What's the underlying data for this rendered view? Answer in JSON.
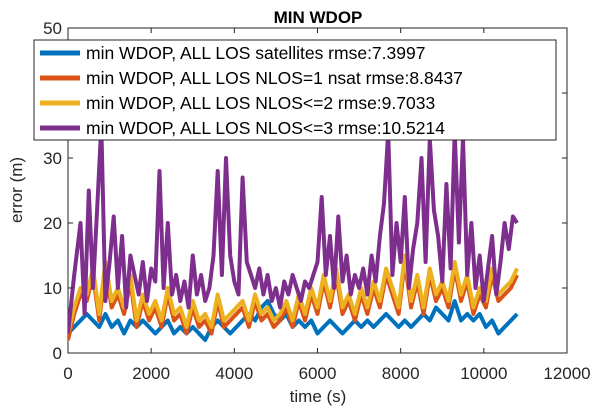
{
  "chart_data": {
    "type": "line",
    "title": "MIN WDOP",
    "xlabel": "time (s)",
    "ylabel": "error (m)",
    "xlim": [
      0,
      12000
    ],
    "ylim": [
      0,
      50
    ],
    "xticks": [
      0,
      2000,
      4000,
      6000,
      8000,
      10000,
      12000
    ],
    "yticks": [
      0,
      10,
      20,
      30,
      40,
      50
    ],
    "grid": false,
    "legend_position": "top-left",
    "series": [
      {
        "name": "min WDOP, ALL LOS satellites rmse:7.3997",
        "color": "#0072BD",
        "points": [
          [
            0,
            3
          ],
          [
            150,
            4
          ],
          [
            300,
            5
          ],
          [
            450,
            6
          ],
          [
            600,
            5
          ],
          [
            750,
            4
          ],
          [
            900,
            6
          ],
          [
            1050,
            4
          ],
          [
            1200,
            5
          ],
          [
            1350,
            3
          ],
          [
            1500,
            5
          ],
          [
            1650,
            4
          ],
          [
            1800,
            5
          ],
          [
            1950,
            4
          ],
          [
            2100,
            3
          ],
          [
            2250,
            4
          ],
          [
            2400,
            5
          ],
          [
            2550,
            3
          ],
          [
            2700,
            4
          ],
          [
            2850,
            3
          ],
          [
            3000,
            4
          ],
          [
            3150,
            3
          ],
          [
            3300,
            2
          ],
          [
            3450,
            4
          ],
          [
            3600,
            5
          ],
          [
            3750,
            4
          ],
          [
            3900,
            3
          ],
          [
            4050,
            4
          ],
          [
            4200,
            5
          ],
          [
            4350,
            6
          ],
          [
            4500,
            5
          ],
          [
            4650,
            7
          ],
          [
            4800,
            8
          ],
          [
            4950,
            6
          ],
          [
            5100,
            5
          ],
          [
            5250,
            6
          ],
          [
            5400,
            4
          ],
          [
            5550,
            5
          ],
          [
            5700,
            4
          ],
          [
            5850,
            5
          ],
          [
            6000,
            3
          ],
          [
            6150,
            4
          ],
          [
            6300,
            5
          ],
          [
            6450,
            4
          ],
          [
            6600,
            3
          ],
          [
            6750,
            4
          ],
          [
            6900,
            5
          ],
          [
            7050,
            4
          ],
          [
            7200,
            5
          ],
          [
            7350,
            4
          ],
          [
            7500,
            5
          ],
          [
            7650,
            6
          ],
          [
            7800,
            5
          ],
          [
            7950,
            4
          ],
          [
            8100,
            5
          ],
          [
            8250,
            4
          ],
          [
            8400,
            5
          ],
          [
            8550,
            6
          ],
          [
            8700,
            5
          ],
          [
            8850,
            7
          ],
          [
            9000,
            6
          ],
          [
            9150,
            5
          ],
          [
            9300,
            8
          ],
          [
            9450,
            5
          ],
          [
            9600,
            6
          ],
          [
            9750,
            5
          ],
          [
            9900,
            6
          ],
          [
            10050,
            4
          ],
          [
            10200,
            5
          ],
          [
            10350,
            3
          ],
          [
            10500,
            4
          ],
          [
            10650,
            5
          ],
          [
            10800,
            6
          ]
        ]
      },
      {
        "name": "min WDOP, ALL LOS NLOS=1 nsat rmse:8.8437",
        "color": "#D95319",
        "points": [
          [
            0,
            2
          ],
          [
            150,
            6
          ],
          [
            300,
            9
          ],
          [
            450,
            8
          ],
          [
            600,
            12
          ],
          [
            750,
            5
          ],
          [
            900,
            13
          ],
          [
            1050,
            7
          ],
          [
            1200,
            9
          ],
          [
            1350,
            6
          ],
          [
            1500,
            11
          ],
          [
            1650,
            4
          ],
          [
            1800,
            8
          ],
          [
            1950,
            5
          ],
          [
            2100,
            7
          ],
          [
            2250,
            4
          ],
          [
            2400,
            9
          ],
          [
            2550,
            5
          ],
          [
            2700,
            6
          ],
          [
            2850,
            3
          ],
          [
            3000,
            7
          ],
          [
            3150,
            4
          ],
          [
            3300,
            5
          ],
          [
            3450,
            3
          ],
          [
            3600,
            8
          ],
          [
            3750,
            4
          ],
          [
            3900,
            5
          ],
          [
            4050,
            6
          ],
          [
            4200,
            7
          ],
          [
            4350,
            4
          ],
          [
            4500,
            8
          ],
          [
            4650,
            5
          ],
          [
            4800,
            6
          ],
          [
            4950,
            4
          ],
          [
            5100,
            5
          ],
          [
            5250,
            7
          ],
          [
            5400,
            4
          ],
          [
            5550,
            8
          ],
          [
            5700,
            5
          ],
          [
            5850,
            9
          ],
          [
            6000,
            6
          ],
          [
            6150,
            11
          ],
          [
            6300,
            7
          ],
          [
            6450,
            12
          ],
          [
            6600,
            6
          ],
          [
            6750,
            8
          ],
          [
            6900,
            5
          ],
          [
            7050,
            9
          ],
          [
            7200,
            6
          ],
          [
            7350,
            10
          ],
          [
            7500,
            7
          ],
          [
            7650,
            12
          ],
          [
            7800,
            9
          ],
          [
            7950,
            6
          ],
          [
            8100,
            14
          ],
          [
            8250,
            7
          ],
          [
            8400,
            11
          ],
          [
            8550,
            6
          ],
          [
            8700,
            12
          ],
          [
            8850,
            8
          ],
          [
            9000,
            10
          ],
          [
            9150,
            7
          ],
          [
            9300,
            13
          ],
          [
            9450,
            8
          ],
          [
            9600,
            11
          ],
          [
            9750,
            6
          ],
          [
            9900,
            9
          ],
          [
            10050,
            7
          ],
          [
            10200,
            12
          ],
          [
            10350,
            8
          ],
          [
            10500,
            9
          ],
          [
            10650,
            10
          ],
          [
            10800,
            12
          ]
        ]
      },
      {
        "name": "min WDOP,  ALL LOS NLOS<=2  rmse:9.7033",
        "color": "#EDB120",
        "points": [
          [
            0,
            3
          ],
          [
            150,
            7
          ],
          [
            300,
            10
          ],
          [
            450,
            9
          ],
          [
            600,
            13
          ],
          [
            750,
            6
          ],
          [
            900,
            14
          ],
          [
            1050,
            8
          ],
          [
            1200,
            10
          ],
          [
            1350,
            7
          ],
          [
            1500,
            12
          ],
          [
            1650,
            5
          ],
          [
            1800,
            9
          ],
          [
            1950,
            6
          ],
          [
            2100,
            8
          ],
          [
            2250,
            5
          ],
          [
            2400,
            10
          ],
          [
            2550,
            6
          ],
          [
            2700,
            7
          ],
          [
            2850,
            4
          ],
          [
            3000,
            8
          ],
          [
            3150,
            5
          ],
          [
            3300,
            6
          ],
          [
            3450,
            4
          ],
          [
            3600,
            9
          ],
          [
            3750,
            5
          ],
          [
            3900,
            6
          ],
          [
            4050,
            7
          ],
          [
            4200,
            8
          ],
          [
            4350,
            5
          ],
          [
            4500,
            9
          ],
          [
            4650,
            6
          ],
          [
            4800,
            7
          ],
          [
            4950,
            5
          ],
          [
            5100,
            6
          ],
          [
            5250,
            8
          ],
          [
            5400,
            5
          ],
          [
            5550,
            9
          ],
          [
            5700,
            6
          ],
          [
            5850,
            10
          ],
          [
            6000,
            7
          ],
          [
            6150,
            12
          ],
          [
            6300,
            8
          ],
          [
            6450,
            13
          ],
          [
            6600,
            7
          ],
          [
            6750,
            9
          ],
          [
            6900,
            6
          ],
          [
            7050,
            10
          ],
          [
            7200,
            7
          ],
          [
            7350,
            11
          ],
          [
            7500,
            8
          ],
          [
            7650,
            13
          ],
          [
            7800,
            10
          ],
          [
            7950,
            7
          ],
          [
            8100,
            15
          ],
          [
            8250,
            8
          ],
          [
            8400,
            12
          ],
          [
            8550,
            7
          ],
          [
            8700,
            13
          ],
          [
            8850,
            9
          ],
          [
            9000,
            11
          ],
          [
            9150,
            8
          ],
          [
            9300,
            14
          ],
          [
            9450,
            9
          ],
          [
            9600,
            12
          ],
          [
            9750,
            7
          ],
          [
            9900,
            10
          ],
          [
            10050,
            8
          ],
          [
            10200,
            13
          ],
          [
            10350,
            9
          ],
          [
            10500,
            10
          ],
          [
            10650,
            11
          ],
          [
            10800,
            13
          ]
        ]
      },
      {
        "name": "min WDOP,  ALL LOS NLOS<=3  rmse:10.5214",
        "color": "#7E2F8E",
        "points": [
          [
            0,
            3
          ],
          [
            150,
            12
          ],
          [
            300,
            20
          ],
          [
            400,
            6
          ],
          [
            500,
            25
          ],
          [
            600,
            10
          ],
          [
            700,
            22
          ],
          [
            800,
            35
          ],
          [
            900,
            8
          ],
          [
            1000,
            14
          ],
          [
            1100,
            21
          ],
          [
            1200,
            10
          ],
          [
            1300,
            18
          ],
          [
            1400,
            7
          ],
          [
            1500,
            15
          ],
          [
            1600,
            12
          ],
          [
            1700,
            9
          ],
          [
            1800,
            14
          ],
          [
            1900,
            8
          ],
          [
            2000,
            13
          ],
          [
            2100,
            11
          ],
          [
            2200,
            28
          ],
          [
            2300,
            10
          ],
          [
            2400,
            20
          ],
          [
            2500,
            9
          ],
          [
            2600,
            12
          ],
          [
            2700,
            8
          ],
          [
            2800,
            11
          ],
          [
            2900,
            7
          ],
          [
            3000,
            15
          ],
          [
            3100,
            9
          ],
          [
            3200,
            12
          ],
          [
            3300,
            8
          ],
          [
            3400,
            10
          ],
          [
            3500,
            15
          ],
          [
            3600,
            28
          ],
          [
            3700,
            12
          ],
          [
            3800,
            30
          ],
          [
            3900,
            15
          ],
          [
            4000,
            11
          ],
          [
            4100,
            9
          ],
          [
            4200,
            27
          ],
          [
            4300,
            14
          ],
          [
            4400,
            12
          ],
          [
            4500,
            10
          ],
          [
            4600,
            13
          ],
          [
            4700,
            9
          ],
          [
            4800,
            12
          ],
          [
            4900,
            8
          ],
          [
            5000,
            10
          ],
          [
            5100,
            7
          ],
          [
            5200,
            11
          ],
          [
            5300,
            9
          ],
          [
            5400,
            12
          ],
          [
            5500,
            10
          ],
          [
            5600,
            8
          ],
          [
            5700,
            11
          ],
          [
            5800,
            10
          ],
          [
            5900,
            12
          ],
          [
            6000,
            14
          ],
          [
            6100,
            24
          ],
          [
            6200,
            12
          ],
          [
            6300,
            18
          ],
          [
            6400,
            10
          ],
          [
            6500,
            21
          ],
          [
            6600,
            11
          ],
          [
            6700,
            15
          ],
          [
            6800,
            9
          ],
          [
            6900,
            12
          ],
          [
            7000,
            10
          ],
          [
            7100,
            13
          ],
          [
            7200,
            9
          ],
          [
            7300,
            15
          ],
          [
            7400,
            11
          ],
          [
            7500,
            18
          ],
          [
            7600,
            23
          ],
          [
            7700,
            34
          ],
          [
            7800,
            12
          ],
          [
            7900,
            20
          ],
          [
            8000,
            14
          ],
          [
            8100,
            24
          ],
          [
            8200,
            10
          ],
          [
            8300,
            16
          ],
          [
            8400,
            20
          ],
          [
            8500,
            30
          ],
          [
            8600,
            14
          ],
          [
            8700,
            33
          ],
          [
            8800,
            22
          ],
          [
            8900,
            18
          ],
          [
            9000,
            11
          ],
          [
            9100,
            26
          ],
          [
            9200,
            13
          ],
          [
            9300,
            34
          ],
          [
            9400,
            17
          ],
          [
            9500,
            33
          ],
          [
            9600,
            12
          ],
          [
            9700,
            20
          ],
          [
            9800,
            10
          ],
          [
            9900,
            15
          ],
          [
            10000,
            8
          ],
          [
            10100,
            13
          ],
          [
            10200,
            18
          ],
          [
            10300,
            9
          ],
          [
            10400,
            14
          ],
          [
            10500,
            20
          ],
          [
            10600,
            16
          ],
          [
            10700,
            21
          ],
          [
            10800,
            20
          ]
        ]
      }
    ]
  }
}
